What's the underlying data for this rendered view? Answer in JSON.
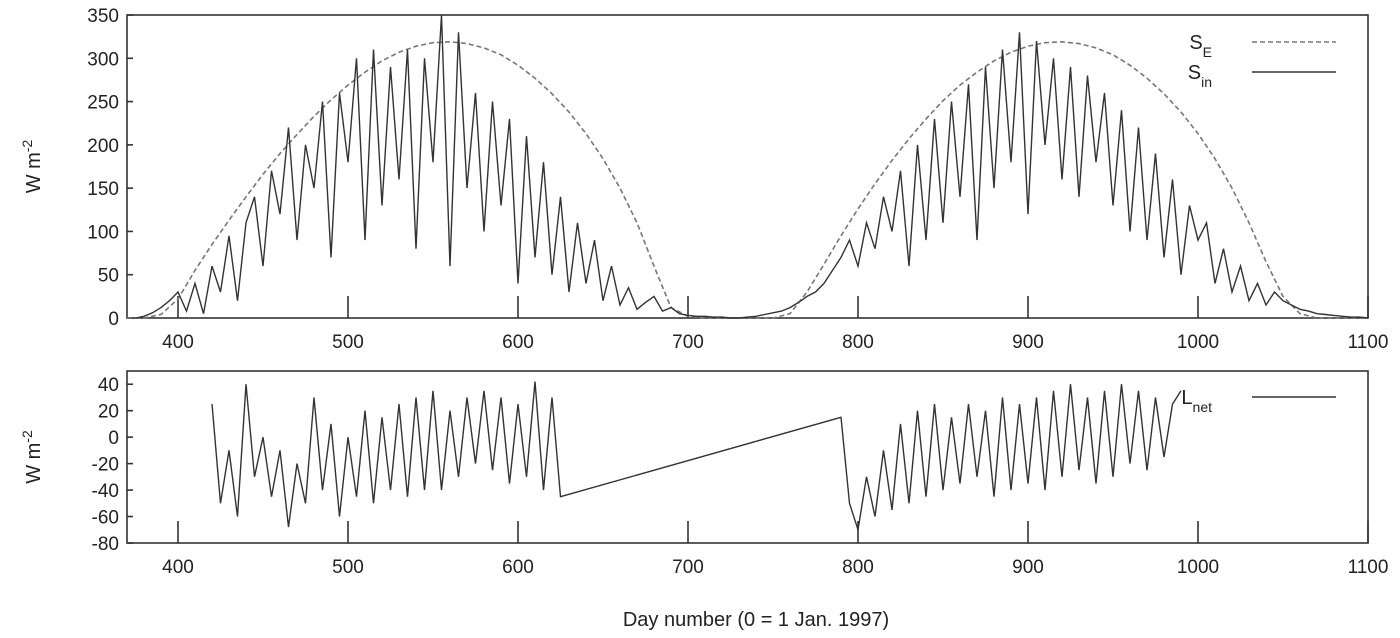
{
  "chart_data": [
    {
      "type": "line",
      "panel": "top",
      "ylabel": "W m",
      "ylabel_sup": "-2",
      "xlim": [
        370,
        1100
      ],
      "ylim": [
        0,
        350
      ],
      "x_ticks": [
        400,
        500,
        600,
        700,
        800,
        900,
        1000,
        1100
      ],
      "y_ticks": [
        0,
        50,
        100,
        150,
        200,
        250,
        300,
        350
      ],
      "grid": false,
      "legend_position": "top-right",
      "series": [
        {
          "name": "S",
          "name_sub": "E",
          "style": "dashed",
          "color": "#777777",
          "x": [
            370,
            380,
            390,
            400,
            410,
            420,
            430,
            440,
            450,
            460,
            470,
            480,
            490,
            500,
            510,
            520,
            530,
            540,
            550,
            560,
            570,
            580,
            590,
            600,
            610,
            620,
            630,
            640,
            650,
            660,
            670,
            680,
            690,
            700,
            710,
            720,
            730,
            740,
            750,
            760,
            770,
            780,
            790,
            800,
            810,
            820,
            830,
            840,
            850,
            860,
            870,
            880,
            890,
            900,
            910,
            920,
            930,
            940,
            950,
            960,
            970,
            980,
            990,
            1000,
            1010,
            1020,
            1030,
            1040,
            1050,
            1060,
            1070,
            1080,
            1090,
            1100
          ],
          "y": [
            0,
            0,
            4,
            22,
            55,
            85,
            113,
            140,
            166,
            190,
            212,
            233,
            252,
            269,
            284,
            297,
            307,
            314,
            318,
            319,
            317,
            312,
            304,
            292,
            277,
            259,
            238,
            213,
            184,
            150,
            110,
            60,
            12,
            2,
            0,
            0,
            0,
            0,
            0,
            5,
            30,
            62,
            95,
            126,
            155,
            182,
            207,
            230,
            251,
            269,
            284,
            297,
            307,
            314,
            318,
            319,
            317,
            312,
            304,
            292,
            277,
            259,
            238,
            213,
            184,
            150,
            110,
            65,
            25,
            5,
            0,
            0,
            0,
            0
          ]
        },
        {
          "name": "S",
          "name_sub": "in",
          "style": "solid",
          "color": "#333333",
          "x": [
            375,
            380,
            385,
            390,
            395,
            400,
            405,
            410,
            415,
            420,
            425,
            430,
            435,
            440,
            445,
            450,
            455,
            460,
            465,
            470,
            475,
            480,
            485,
            490,
            495,
            500,
            505,
            510,
            515,
            520,
            525,
            530,
            535,
            540,
            545,
            550,
            555,
            560,
            565,
            570,
            575,
            580,
            585,
            590,
            595,
            600,
            605,
            610,
            615,
            620,
            625,
            630,
            635,
            640,
            645,
            650,
            655,
            660,
            665,
            670,
            675,
            680,
            685,
            690,
            695,
            700,
            705,
            710,
            715,
            720,
            725,
            730,
            735,
            740,
            745,
            750,
            755,
            760,
            765,
            770,
            775,
            780,
            785,
            790,
            795,
            800,
            805,
            810,
            815,
            820,
            825,
            830,
            835,
            840,
            845,
            850,
            855,
            860,
            865,
            870,
            875,
            880,
            885,
            890,
            895,
            900,
            905,
            910,
            915,
            920,
            925,
            930,
            935,
            940,
            945,
            950,
            955,
            960,
            965,
            970,
            975,
            980,
            985,
            990,
            995,
            1000,
            1005,
            1010,
            1015,
            1020,
            1025,
            1030,
            1035,
            1040,
            1045,
            1050,
            1055,
            1060,
            1065,
            1070,
            1075,
            1080,
            1085,
            1090,
            1095,
            1100
          ],
          "y": [
            0,
            2,
            6,
            12,
            20,
            30,
            8,
            40,
            5,
            60,
            30,
            95,
            20,
            110,
            140,
            60,
            170,
            120,
            220,
            90,
            200,
            150,
            250,
            70,
            260,
            180,
            300,
            90,
            310,
            130,
            290,
            160,
            310,
            80,
            300,
            180,
            350,
            60,
            330,
            150,
            260,
            100,
            250,
            130,
            230,
            40,
            210,
            70,
            180,
            50,
            140,
            30,
            110,
            40,
            90,
            20,
            60,
            15,
            35,
            10,
            18,
            25,
            8,
            12,
            5,
            3,
            2,
            2,
            1,
            1,
            0,
            0,
            1,
            2,
            4,
            6,
            8,
            12,
            18,
            25,
            30,
            40,
            55,
            70,
            90,
            60,
            110,
            80,
            140,
            100,
            170,
            60,
            200,
            90,
            230,
            110,
            250,
            140,
            270,
            90,
            290,
            150,
            310,
            180,
            330,
            120,
            320,
            200,
            300,
            160,
            290,
            140,
            280,
            180,
            260,
            130,
            240,
            100,
            220,
            90,
            190,
            70,
            160,
            50,
            130,
            90,
            110,
            40,
            80,
            30,
            60,
            20,
            40,
            15,
            30,
            20,
            15,
            10,
            8,
            5,
            4,
            3,
            2,
            1,
            1,
            0
          ]
        }
      ]
    },
    {
      "type": "line",
      "panel": "bottom",
      "xlabel": "Day number (0 = 1 Jan. 1997)",
      "ylabel": "W m",
      "ylabel_sup": "-2",
      "xlim": [
        370,
        1100
      ],
      "ylim": [
        -80,
        50
      ],
      "x_ticks": [
        400,
        500,
        600,
        700,
        800,
        900,
        1000,
        1100
      ],
      "y_ticks": [
        -80,
        -60,
        -40,
        -20,
        0,
        20,
        40
      ],
      "grid": false,
      "legend_position": "top-right",
      "series": [
        {
          "name": "L",
          "name_sub": "net",
          "style": "solid",
          "color": "#333333",
          "x": [
            420,
            425,
            430,
            435,
            440,
            445,
            450,
            455,
            460,
            465,
            470,
            475,
            480,
            485,
            490,
            495,
            500,
            505,
            510,
            515,
            520,
            525,
            530,
            535,
            540,
            545,
            550,
            555,
            560,
            565,
            570,
            575,
            580,
            585,
            590,
            595,
            600,
            605,
            610,
            615,
            620,
            625,
            790,
            795,
            800,
            805,
            810,
            815,
            820,
            825,
            830,
            835,
            840,
            845,
            850,
            855,
            860,
            865,
            870,
            875,
            880,
            885,
            890,
            895,
            900,
            905,
            910,
            915,
            920,
            925,
            930,
            935,
            940,
            945,
            950,
            955,
            960,
            965,
            970,
            975,
            980,
            985,
            990
          ],
          "y": [
            25,
            -50,
            -10,
            -60,
            40,
            -30,
            0,
            -45,
            -10,
            -68,
            -20,
            -50,
            30,
            -40,
            10,
            -60,
            0,
            -45,
            20,
            -50,
            15,
            -40,
            25,
            -45,
            30,
            -40,
            35,
            -40,
            20,
            -30,
            30,
            -20,
            35,
            -25,
            30,
            -35,
            25,
            -30,
            42,
            -40,
            30,
            -45,
            15,
            -50,
            -70,
            -30,
            -60,
            -10,
            -55,
            10,
            -50,
            20,
            -45,
            25,
            -40,
            15,
            -35,
            25,
            -30,
            20,
            -45,
            30,
            -40,
            25,
            -35,
            30,
            -40,
            35,
            -30,
            40,
            -25,
            30,
            -35,
            35,
            -30,
            40,
            -20,
            35,
            -25,
            30,
            -15,
            25,
            35
          ]
        }
      ]
    }
  ]
}
